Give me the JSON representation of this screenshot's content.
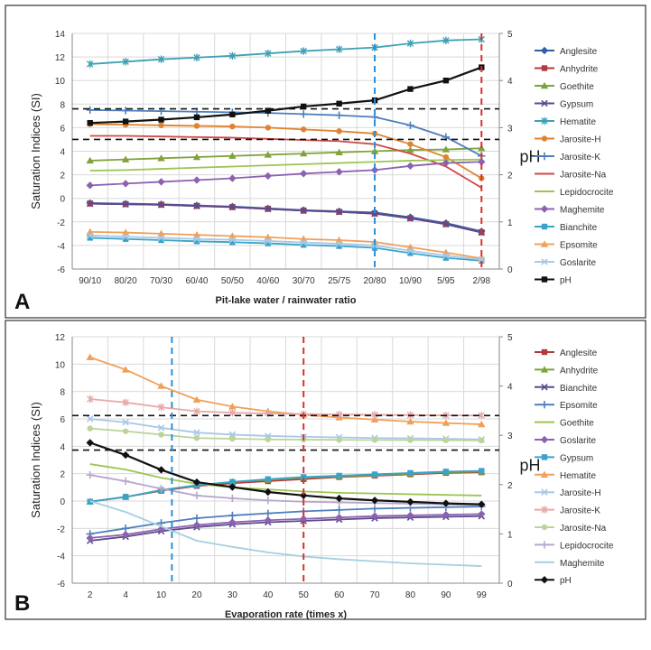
{
  "chart_data": [
    {
      "panel": "A",
      "type": "line",
      "xlabel": "Pit-lake water /  rainwater ratio",
      "ylabel": "Saturation Indices (SI)",
      "y2label": "pH",
      "categories": [
        "90/10",
        "80/20",
        "70/30",
        "60/40",
        "50/50",
        "40/60",
        "30/70",
        "25/75",
        "20/80",
        "10/90",
        "5/95",
        "2/98"
      ],
      "ylim": [
        -6,
        14
      ],
      "yticks": [
        -6,
        -4,
        -2,
        0,
        2,
        4,
        6,
        8,
        10,
        12,
        14
      ],
      "y2lim": [
        0,
        5
      ],
      "y2ticks": [
        0,
        1,
        2,
        3,
        4,
        5
      ],
      "hlines_y2": [
        3.4,
        2.75
      ],
      "vlines": [
        {
          "index": 8,
          "color": "#2a8fd8"
        },
        {
          "index": 11,
          "color": "#d9312b"
        }
      ],
      "series": [
        {
          "name": "Anglesite",
          "color": "#2e5fa8",
          "marker": "diamond",
          "values": [
            -0.4,
            -0.45,
            -0.5,
            -0.6,
            -0.7,
            -0.85,
            -1.0,
            -1.1,
            -1.2,
            -1.6,
            -2.1,
            -2.8
          ]
        },
        {
          "name": "Anhydrite",
          "color": "#b3393c",
          "marker": "square",
          "values": [
            -0.45,
            -0.5,
            -0.55,
            -0.65,
            -0.75,
            -0.9,
            -1.05,
            -1.15,
            -1.3,
            -1.7,
            -2.2,
            -2.9
          ]
        },
        {
          "name": "Goethite",
          "color": "#7fa33b",
          "marker": "triangle",
          "values": [
            3.2,
            3.3,
            3.4,
            3.5,
            3.6,
            3.7,
            3.8,
            3.9,
            4.0,
            4.1,
            4.15,
            4.25
          ]
        },
        {
          "name": "Gypsum",
          "color": "#5e4a8c",
          "marker": "x",
          "values": [
            -0.45,
            -0.5,
            -0.55,
            -0.65,
            -0.75,
            -0.9,
            -1.05,
            -1.15,
            -1.3,
            -1.7,
            -2.2,
            -2.9
          ]
        },
        {
          "name": "Hematite",
          "color": "#3da0b5",
          "marker": "star",
          "values": [
            11.4,
            11.6,
            11.8,
            11.95,
            12.1,
            12.3,
            12.5,
            12.65,
            12.8,
            13.15,
            13.4,
            13.5
          ]
        },
        {
          "name": "Jarosite-H",
          "color": "#e0832e",
          "marker": "circle",
          "values": [
            6.3,
            6.25,
            6.2,
            6.15,
            6.1,
            6.0,
            5.85,
            5.7,
            5.5,
            4.6,
            3.5,
            1.7
          ]
        },
        {
          "name": "Jarosite-K",
          "color": "#4d7fbd",
          "marker": "plus",
          "values": [
            7.5,
            7.45,
            7.4,
            7.35,
            7.3,
            7.25,
            7.15,
            7.05,
            6.9,
            6.2,
            5.2,
            3.6
          ]
        },
        {
          "name": "Jarosite-Na",
          "color": "#cf4a47",
          "marker": "none",
          "values": [
            5.3,
            5.3,
            5.25,
            5.2,
            5.15,
            5.05,
            4.95,
            4.85,
            4.6,
            3.8,
            2.7,
            0.9
          ]
        },
        {
          "name": "Lepidocrocite",
          "color": "#9dc552",
          "marker": "none",
          "values": [
            2.35,
            2.4,
            2.5,
            2.6,
            2.7,
            2.8,
            2.9,
            3.0,
            3.1,
            3.2,
            3.25,
            3.3
          ]
        },
        {
          "name": "Maghemite",
          "color": "#8c62b0",
          "marker": "diamond",
          "values": [
            1.1,
            1.25,
            1.4,
            1.55,
            1.7,
            1.9,
            2.1,
            2.25,
            2.4,
            2.75,
            3.0,
            3.1
          ]
        },
        {
          "name": "Bianchite",
          "color": "#3aa3c9",
          "marker": "square",
          "values": [
            -3.35,
            -3.45,
            -3.55,
            -3.65,
            -3.72,
            -3.82,
            -3.95,
            -4.05,
            -4.2,
            -4.65,
            -5.05,
            -5.3
          ]
        },
        {
          "name": "Epsomite",
          "color": "#f0a058",
          "marker": "triangle",
          "values": [
            -2.85,
            -2.9,
            -3.0,
            -3.1,
            -3.2,
            -3.3,
            -3.45,
            -3.55,
            -3.7,
            -4.15,
            -4.6,
            -5.1
          ]
        },
        {
          "name": "Goslarite",
          "color": "#a8c8e6",
          "marker": "x",
          "values": [
            -3.15,
            -3.25,
            -3.35,
            -3.45,
            -3.52,
            -3.62,
            -3.75,
            -3.85,
            -4.0,
            -4.45,
            -4.85,
            -5.2
          ]
        },
        {
          "name": "pH",
          "color": "#111111",
          "marker": "square",
          "axis": "y2",
          "values": [
            3.1,
            3.13,
            3.17,
            3.22,
            3.28,
            3.36,
            3.45,
            3.51,
            3.58,
            3.82,
            4.0,
            4.28
          ]
        }
      ]
    },
    {
      "panel": "B",
      "type": "line",
      "xlabel": "Evaporation rate (times x)",
      "ylabel": "Saturation Indices (SI)",
      "y2label": "pH",
      "categories": [
        "2",
        "4",
        "10",
        "20",
        "30",
        "40",
        "50",
        "60",
        "70",
        "80",
        "90",
        "99"
      ],
      "ylim": [
        -6,
        12
      ],
      "yticks": [
        -6,
        -4,
        -2,
        0,
        2,
        4,
        6,
        8,
        10,
        12
      ],
      "y2lim": [
        0,
        5
      ],
      "y2ticks": [
        0,
        1,
        2,
        3,
        4,
        5
      ],
      "hlines_y2": [
        3.4,
        2.7
      ],
      "vlines": [
        {
          "index": 2.3,
          "color": "#2a8fd8"
        },
        {
          "index": 6,
          "color": "#d9312b"
        }
      ],
      "series": [
        {
          "name": "Anglesite",
          "color": "#b3393c",
          "marker": "square",
          "values": [
            -0.05,
            0.3,
            0.75,
            1.1,
            1.3,
            1.45,
            1.6,
            1.75,
            1.85,
            1.95,
            2.05,
            2.1
          ]
        },
        {
          "name": "Anhydrite",
          "color": "#7fa33b",
          "marker": "triangle",
          "values": [
            -0.05,
            0.3,
            0.8,
            1.15,
            1.4,
            1.55,
            1.7,
            1.8,
            1.9,
            2.0,
            2.1,
            2.15
          ]
        },
        {
          "name": "Bianchite",
          "color": "#5e4a8c",
          "marker": "x",
          "values": [
            -2.9,
            -2.6,
            -2.2,
            -1.9,
            -1.7,
            -1.55,
            -1.45,
            -1.35,
            -1.25,
            -1.2,
            -1.15,
            -1.1
          ]
        },
        {
          "name": "Epsomite",
          "color": "#4d7fbd",
          "marker": "plus",
          "values": [
            -2.4,
            -2.0,
            -1.6,
            -1.25,
            -1.05,
            -0.9,
            -0.75,
            -0.65,
            -0.55,
            -0.5,
            -0.45,
            -0.4
          ]
        },
        {
          "name": "Goethite",
          "color": "#9dc552",
          "marker": "none",
          "values": [
            2.7,
            2.3,
            1.7,
            1.25,
            1.0,
            0.85,
            0.7,
            0.6,
            0.55,
            0.5,
            0.45,
            0.4
          ]
        },
        {
          "name": "Goslarite",
          "color": "#8c62b0",
          "marker": "diamond",
          "values": [
            -2.7,
            -2.45,
            -2.05,
            -1.75,
            -1.55,
            -1.4,
            -1.3,
            -1.2,
            -1.1,
            -1.05,
            -1.0,
            -0.95
          ]
        },
        {
          "name": "Gypsum",
          "color": "#3aa3c9",
          "marker": "square",
          "values": [
            -0.05,
            0.3,
            0.8,
            1.15,
            1.4,
            1.6,
            1.75,
            1.85,
            1.95,
            2.05,
            2.15,
            2.2
          ]
        },
        {
          "name": "Hematite",
          "color": "#f0a058",
          "marker": "triangle",
          "values": [
            10.5,
            9.6,
            8.4,
            7.4,
            6.9,
            6.55,
            6.3,
            6.1,
            5.95,
            5.8,
            5.7,
            5.6
          ]
        },
        {
          "name": "Jarosite-H",
          "color": "#a8c8e6",
          "marker": "x",
          "values": [
            6.0,
            5.75,
            5.35,
            5.0,
            4.85,
            4.75,
            4.7,
            4.65,
            4.6,
            4.58,
            4.55,
            4.5
          ]
        },
        {
          "name": "Jarosite-K",
          "color": "#e8a8a8",
          "marker": "star",
          "values": [
            7.45,
            7.2,
            6.85,
            6.55,
            6.45,
            6.4,
            6.35,
            6.32,
            6.3,
            6.28,
            6.26,
            6.25
          ]
        },
        {
          "name": "Jarosite-Na",
          "color": "#bcd49a",
          "marker": "circle",
          "values": [
            5.3,
            5.1,
            4.85,
            4.6,
            4.55,
            4.5,
            4.48,
            4.47,
            4.46,
            4.45,
            4.44,
            4.43
          ]
        },
        {
          "name": "Lepidocrocite",
          "color": "#b7a6cc",
          "marker": "plus",
          "values": [
            1.9,
            1.45,
            0.9,
            0.4,
            0.2,
            0.05,
            -0.05,
            -0.1,
            -0.15,
            -0.2,
            -0.25,
            -0.3
          ]
        },
        {
          "name": "Maghemite",
          "color": "#a6cfe0",
          "marker": "none",
          "values": [
            0.0,
            -0.8,
            -1.85,
            -2.9,
            -3.35,
            -3.75,
            -4.05,
            -4.25,
            -4.4,
            -4.55,
            -4.65,
            -4.75
          ]
        },
        {
          "name": "pH",
          "color": "#111111",
          "marker": "diamond",
          "axis": "y2",
          "values": [
            2.85,
            2.6,
            2.3,
            2.05,
            1.95,
            1.85,
            1.78,
            1.72,
            1.68,
            1.65,
            1.62,
            1.6
          ]
        }
      ]
    }
  ],
  "panel_labels": [
    "A",
    "B"
  ]
}
